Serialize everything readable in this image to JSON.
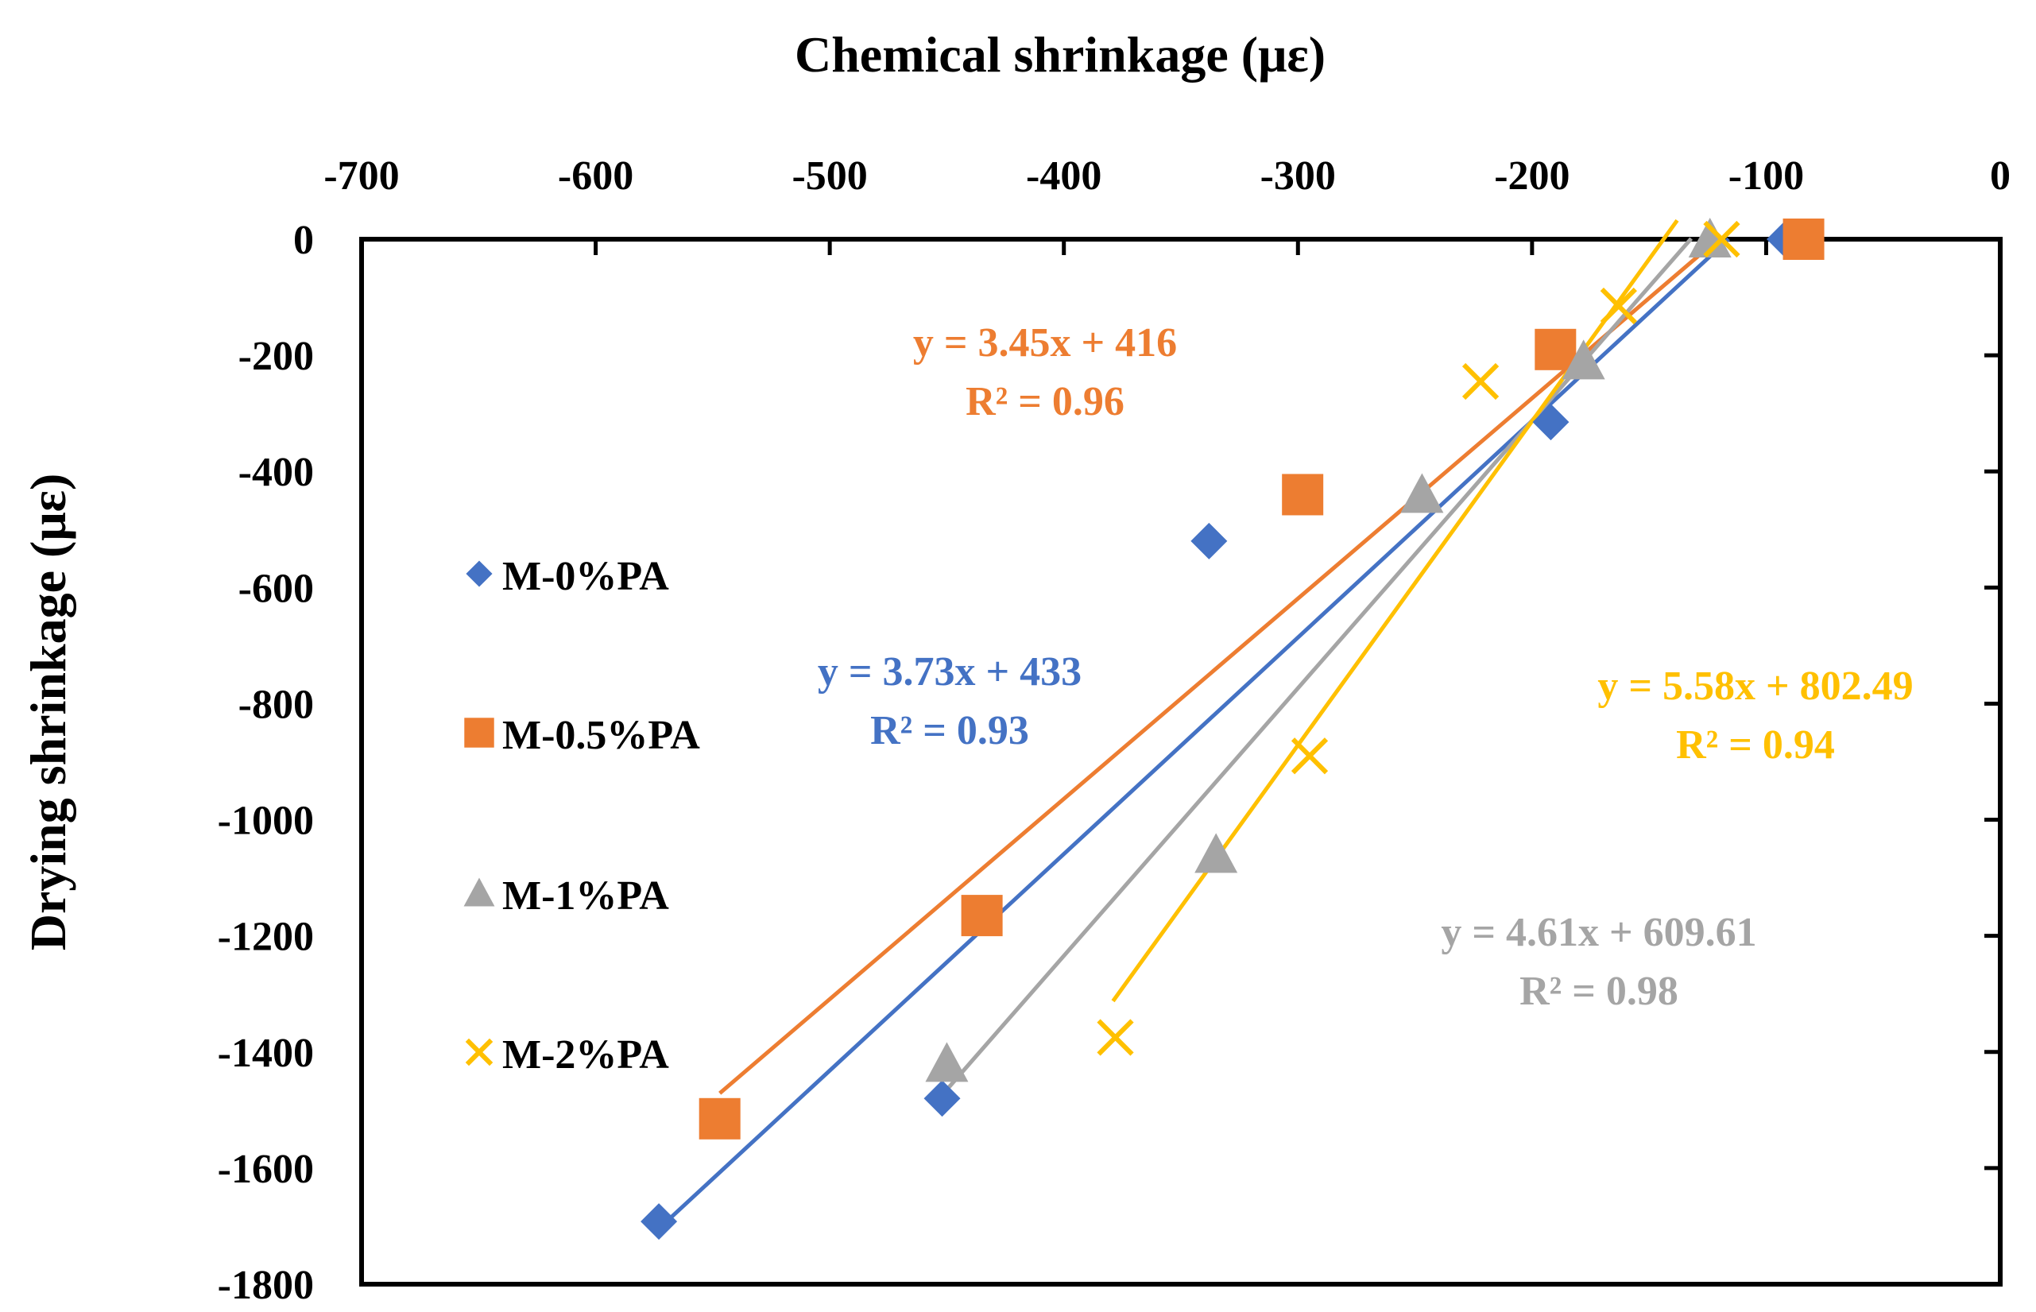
{
  "chart_data": {
    "type": "scatter",
    "title": "",
    "xlabel": "Chemical shrinkage (με)",
    "ylabel": "Drying shrinkage (με)",
    "xlim": [
      -700,
      0
    ],
    "ylim": [
      -1800,
      0
    ],
    "x_ticks": [
      -700,
      -600,
      -500,
      -400,
      -300,
      -200,
      -100,
      0
    ],
    "y_ticks": [
      0,
      -200,
      -400,
      -600,
      -800,
      -1000,
      -1200,
      -1400,
      -1600,
      -1800
    ],
    "x_axis_position": "top",
    "grid": false,
    "legend_position": "left",
    "series": [
      {
        "name": "M-0%PA",
        "color": "#4472C4",
        "marker": "diamond",
        "points": [
          [
            -92,
            0
          ],
          [
            -192,
            -315
          ],
          [
            -338,
            -520
          ],
          [
            -452,
            -1480
          ],
          [
            -573,
            -1692
          ]
        ],
        "trendline": {
          "slope": 3.73,
          "intercept": 433,
          "x_range": [
            -573,
            -116
          ]
        },
        "equation": "y = 3.73x + 433",
        "r2": "R² = 0.93"
      },
      {
        "name": "M-0.5%PA",
        "color": "#ED7D31",
        "marker": "square",
        "points": [
          [
            -84,
            0
          ],
          [
            -190,
            -190
          ],
          [
            -298,
            -440
          ],
          [
            -435,
            -1165
          ],
          [
            -547,
            -1515
          ]
        ],
        "trendline": {
          "slope": 3.45,
          "intercept": 416,
          "x_range": [
            -547,
            -121
          ]
        },
        "equation": "y = 3.45x + 416",
        "r2": "R² = 0.96"
      },
      {
        "name": "M-1%PA",
        "color": "#A5A5A5",
        "marker": "triangle",
        "points": [
          [
            -124,
            0
          ],
          [
            -178,
            -210
          ],
          [
            -247,
            -440
          ],
          [
            -335,
            -1060
          ],
          [
            -450,
            -1420
          ]
        ],
        "trendline": {
          "slope": 4.61,
          "intercept": 609.61,
          "x_range": [
            -450,
            -132
          ]
        },
        "equation": "y = 4.61x + 609.61",
        "r2": "R² = 0.98"
      },
      {
        "name": "M-2%PA",
        "color": "#FFC000",
        "marker": "x",
        "points": [
          [
            -119,
            0
          ],
          [
            -163,
            -115
          ],
          [
            -222,
            -245
          ],
          [
            -295,
            -890
          ],
          [
            -378,
            -1375
          ]
        ],
        "trendline": {
          "slope": 5.58,
          "intercept": 802.49,
          "x_range": [
            -379,
            -138
          ]
        },
        "equation": "y = 5.58x + 802.49",
        "r2": "R² = 0.94"
      }
    ]
  }
}
